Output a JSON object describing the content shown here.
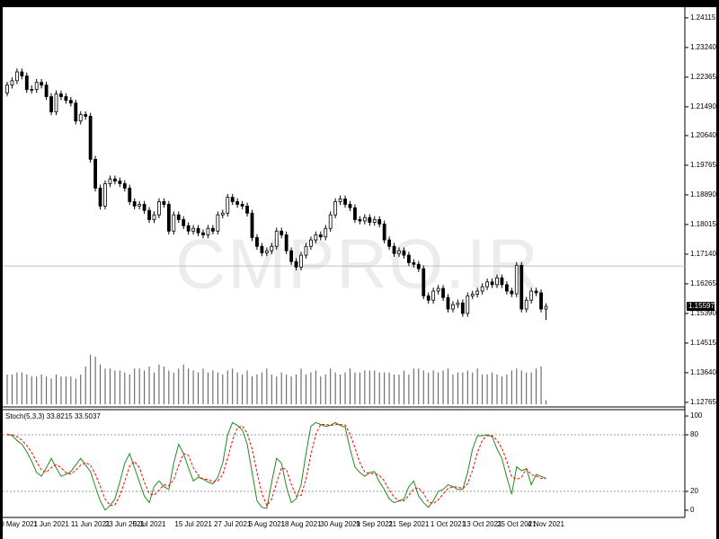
{
  "chart_data": [
    {
      "type": "candlestick",
      "watermark": "CMPRO.IR",
      "ylim": [
        1.1263,
        1.2443
      ],
      "yticks": [
        1.24115,
        {
          "value": 1.2324,
          "label": "1.23240"
        },
        1.22365,
        {
          "value": 1.2149,
          "label": "1.21490"
        },
        {
          "value": 1.2064,
          "label": "1.20640"
        },
        1.19765,
        {
          "value": 1.1889,
          "label": "1.18890"
        },
        1.18015,
        {
          "value": 1.1714,
          "label": "1.17140"
        },
        1.16265,
        {
          "value": 1.1539,
          "label": "1.15390"
        },
        1.14515,
        {
          "value": 1.1364,
          "label": "1.13640"
        },
        1.12765
      ],
      "last_price": 1.15597,
      "hlines": [
        1.1679
      ],
      "up_color": "#ffffff",
      "down_color": "#000000",
      "outline_color": "#000000",
      "candles": {
        "open": [
          1.219,
          1.2213,
          1.2226,
          1.2252,
          1.224,
          1.22,
          1.22,
          1.2221,
          1.2213,
          1.2179,
          1.2134,
          1.2187,
          1.2179,
          1.2168,
          1.216,
          1.2107,
          1.2126,
          1.2121,
          1.1994,
          1.1909,
          1.1856,
          1.1922,
          1.1936,
          1.193,
          1.1922,
          1.1909,
          1.1869,
          1.1856,
          1.1861,
          1.1843,
          1.1816,
          1.183,
          1.1869,
          1.1861,
          1.1782,
          1.183,
          1.1816,
          1.1798,
          1.1782,
          1.179,
          1.1777,
          1.1771,
          1.179,
          1.1782,
          1.183,
          1.1835,
          1.1882,
          1.1869,
          1.1861,
          1.1856,
          1.1835,
          1.1763,
          1.1737,
          1.1718,
          1.1724,
          1.1737,
          1.1782,
          1.1771,
          1.1724,
          1.1692,
          1.1676,
          1.1711,
          1.1737,
          1.1756,
          1.1771,
          1.1765,
          1.179,
          1.183,
          1.1869,
          1.1877,
          1.1861,
          1.1851,
          1.1816,
          1.1812,
          1.1822,
          1.1808,
          1.1816,
          1.1803,
          1.1756,
          1.1737,
          1.1716,
          1.1724,
          1.1711,
          1.1689,
          1.1684,
          1.1671,
          1.1591,
          1.1578,
          1.1605,
          1.1613,
          1.1586,
          1.1552,
          1.1565,
          1.157,
          1.1539,
          1.1591,
          1.1596,
          1.1605,
          1.1618,
          1.1632,
          1.1624,
          1.1644,
          1.1624,
          1.1605,
          1.1597,
          1.1681,
          1.1552,
          1.1578,
          1.1605,
          1.16,
          1.1552
        ],
        "high": [
          1.2223,
          1.2236,
          1.2262,
          1.2262,
          1.225,
          1.2212,
          1.2231,
          1.2231,
          1.2223,
          1.2189,
          1.2197,
          1.2197,
          1.2189,
          1.2178,
          1.217,
          1.2136,
          1.2136,
          1.2131,
          1.2004,
          1.1919,
          1.1932,
          1.1946,
          1.1946,
          1.194,
          1.1932,
          1.1919,
          1.1879,
          1.1871,
          1.1871,
          1.1853,
          1.184,
          1.1879,
          1.1879,
          1.1871,
          1.184,
          1.184,
          1.1826,
          1.1808,
          1.18,
          1.18,
          1.1787,
          1.18,
          1.18,
          1.184,
          1.1845,
          1.1892,
          1.1892,
          1.1879,
          1.1871,
          1.1866,
          1.1845,
          1.1773,
          1.1747,
          1.1734,
          1.1747,
          1.1792,
          1.1792,
          1.1781,
          1.1734,
          1.1702,
          1.1721,
          1.1747,
          1.1766,
          1.1781,
          1.1781,
          1.18,
          1.184,
          1.1879,
          1.1887,
          1.1887,
          1.1871,
          1.1861,
          1.1826,
          1.1832,
          1.1832,
          1.1826,
          1.1826,
          1.1813,
          1.1766,
          1.1747,
          1.1734,
          1.1734,
          1.1721,
          1.1699,
          1.1694,
          1.1681,
          1.1601,
          1.1615,
          1.1623,
          1.1623,
          1.1596,
          1.1575,
          1.158,
          1.158,
          1.1601,
          1.1606,
          1.1615,
          1.1628,
          1.1642,
          1.1642,
          1.1654,
          1.1654,
          1.1634,
          1.1615,
          1.1691,
          1.1691,
          1.1588,
          1.1615,
          1.1615,
          1.161,
          1.1569
        ],
        "low": [
          1.218,
          1.2203,
          1.2216,
          1.223,
          1.219,
          1.2188,
          1.219,
          1.2203,
          1.2169,
          1.2124,
          1.2124,
          1.2169,
          1.2158,
          1.215,
          1.2097,
          1.2097,
          1.2111,
          1.1984,
          1.1899,
          1.1846,
          1.1846,
          1.1912,
          1.192,
          1.1912,
          1.1899,
          1.1859,
          1.1846,
          1.1846,
          1.1833,
          1.1806,
          1.1806,
          1.182,
          1.1851,
          1.1772,
          1.1772,
          1.1806,
          1.1788,
          1.1772,
          1.1772,
          1.1767,
          1.1761,
          1.1761,
          1.1772,
          1.1772,
          1.182,
          1.1825,
          1.1859,
          1.1851,
          1.1846,
          1.1825,
          1.1753,
          1.1727,
          1.1708,
          1.1708,
          1.1714,
          1.1727,
          1.1761,
          1.1714,
          1.1682,
          1.1666,
          1.1666,
          1.1701,
          1.1727,
          1.1746,
          1.1755,
          1.1755,
          1.178,
          1.182,
          1.1859,
          1.1851,
          1.1841,
          1.1806,
          1.1802,
          1.1802,
          1.1798,
          1.1798,
          1.1793,
          1.1746,
          1.1727,
          1.1706,
          1.1706,
          1.1701,
          1.1679,
          1.1674,
          1.1661,
          1.1581,
          1.1568,
          1.1568,
          1.1595,
          1.1576,
          1.1542,
          1.1542,
          1.1555,
          1.1529,
          1.1529,
          1.1581,
          1.1586,
          1.1595,
          1.1608,
          1.1614,
          1.1614,
          1.1614,
          1.1595,
          1.1587,
          1.1587,
          1.1542,
          1.1542,
          1.1568,
          1.159,
          1.1542,
          1.152
        ],
        "close": [
          1.2213,
          1.2226,
          1.2252,
          1.224,
          1.22,
          1.22,
          1.2221,
          1.2213,
          1.2179,
          1.2134,
          1.2187,
          1.2179,
          1.2168,
          1.216,
          1.2107,
          1.2126,
          1.2121,
          1.1994,
          1.1909,
          1.1856,
          1.1922,
          1.1936,
          1.193,
          1.1922,
          1.1909,
          1.1869,
          1.1856,
          1.1861,
          1.1843,
          1.1816,
          1.183,
          1.1869,
          1.1861,
          1.1782,
          1.183,
          1.1816,
          1.1798,
          1.1782,
          1.179,
          1.1777,
          1.1771,
          1.179,
          1.1782,
          1.183,
          1.1835,
          1.1882,
          1.1869,
          1.1861,
          1.1856,
          1.1835,
          1.1763,
          1.1737,
          1.1718,
          1.1724,
          1.1737,
          1.1782,
          1.1771,
          1.1724,
          1.1692,
          1.1676,
          1.1711,
          1.1737,
          1.1756,
          1.1771,
          1.1765,
          1.179,
          1.183,
          1.1869,
          1.1877,
          1.1861,
          1.1851,
          1.1816,
          1.1812,
          1.1822,
          1.1808,
          1.1816,
          1.1803,
          1.1756,
          1.1737,
          1.1716,
          1.1724,
          1.1711,
          1.1689,
          1.1684,
          1.1671,
          1.1591,
          1.1578,
          1.1605,
          1.1613,
          1.1586,
          1.1552,
          1.1565,
          1.157,
          1.1539,
          1.1591,
          1.1596,
          1.1605,
          1.1618,
          1.1632,
          1.1624,
          1.1644,
          1.1624,
          1.1605,
          1.1597,
          1.1681,
          1.1552,
          1.1578,
          1.1605,
          1.16,
          1.1552,
          1.15597
        ]
      },
      "volume_ylim": [
        0,
        400
      ],
      "volume_color": "#555555",
      "volume": [
        30,
        30,
        32,
        32,
        30,
        28,
        28,
        30,
        28,
        26,
        30,
        28,
        28,
        28,
        26,
        30,
        38,
        50,
        48,
        40,
        36,
        36,
        34,
        34,
        32,
        30,
        36,
        36,
        34,
        38,
        32,
        40,
        38,
        34,
        32,
        36,
        40,
        36,
        34,
        32,
        36,
        32,
        34,
        32,
        30,
        34,
        36,
        32,
        30,
        34,
        28,
        30,
        32,
        36,
        30,
        28,
        32,
        30,
        28,
        30,
        36,
        30,
        32,
        34,
        28,
        30,
        36,
        32,
        30,
        32,
        36,
        32,
        32,
        34,
        34,
        34,
        32,
        32,
        32,
        30,
        30,
        34,
        30,
        36,
        36,
        34,
        32,
        34,
        32,
        34,
        36,
        30,
        32,
        32,
        34,
        32,
        36,
        30,
        30,
        32,
        30,
        28,
        30,
        34,
        36,
        34,
        32,
        32,
        36,
        38,
        4
      ]
    },
    {
      "type": "line",
      "title": "Stoch(5,3,3) 33.8215 33.5037",
      "ylim": [
        -6.7,
        106.7
      ],
      "yticks": [
        0,
        20,
        80,
        100
      ],
      "levels": [
        20,
        80
      ],
      "categories": [
        null,
        null,
        "20 May 2021",
        null,
        null,
        null,
        null,
        null,
        null,
        "1 Jun 2021",
        null,
        null,
        null,
        null,
        null,
        null,
        null,
        "11 Jun 2021",
        null,
        null,
        null,
        null,
        null,
        null,
        "23 Jun 2021",
        null,
        null,
        null,
        null,
        "5 Jul 2021",
        null,
        null,
        null,
        null,
        null,
        null,
        null,
        null,
        "15 Jul 2021",
        null,
        null,
        null,
        null,
        null,
        null,
        null,
        "27 Jul 2021",
        null,
        null,
        null,
        null,
        null,
        null,
        "6 Aug 2021",
        null,
        null,
        null,
        null,
        null,
        null,
        "18 Aug 2021",
        null,
        null,
        null,
        null,
        null,
        null,
        null,
        "30 Aug 2021",
        null,
        null,
        null,
        null,
        null,
        null,
        "9 Sep 2021",
        null,
        null,
        null,
        null,
        null,
        null,
        "21 Sep 2021",
        null,
        null,
        null,
        null,
        null,
        null,
        null,
        "1 Oct 2021",
        null,
        null,
        null,
        null,
        null,
        null,
        "13 Oct 2021",
        null,
        null,
        null,
        null,
        null,
        null,
        "25 Oct 2021",
        null,
        null,
        null,
        null,
        null,
        "4 Nov 2021"
      ],
      "series": [
        {
          "name": "Main",
          "color": "#228b22",
          "dash": "solid",
          "values": [
            81,
            79,
            74,
            70,
            62,
            52,
            40,
            36,
            45,
            55,
            45,
            36,
            38,
            41,
            48,
            55,
            48,
            41,
            25,
            10,
            0,
            5,
            12,
            30,
            50,
            60,
            45,
            30,
            15,
            8,
            25,
            31,
            25,
            22,
            50,
            70,
            60,
            45,
            31,
            35,
            33,
            30,
            28,
            35,
            50,
            80,
            93,
            90,
            85,
            70,
            40,
            10,
            3,
            2,
            30,
            55,
            50,
            25,
            8,
            12,
            27,
            60,
            89,
            93,
            91,
            89,
            90,
            93,
            90,
            88,
            65,
            46,
            40,
            36,
            40,
            41,
            30,
            22,
            12,
            8,
            10,
            12,
            25,
            31,
            15,
            8,
            3,
            10,
            20,
            22,
            27,
            25,
            22,
            22,
            40,
            65,
            79,
            79,
            80,
            78,
            65,
            55,
            35,
            17,
            46,
            42,
            44,
            27,
            38,
            36,
            33.8215
          ]
        },
        {
          "name": "Signal",
          "color": "#ff0000",
          "dash": "dashed",
          "values": [
            80,
            80,
            78,
            74.3,
            68.7,
            61.3,
            51.3,
            42.7,
            40.3,
            45.3,
            48.3,
            45.3,
            39.7,
            38.3,
            42.3,
            48,
            50.3,
            48,
            38,
            25.3,
            11.7,
            5,
            5.7,
            15.7,
            30.7,
            46.7,
            51.7,
            45,
            30,
            17.7,
            16,
            21.3,
            27,
            26,
            32.3,
            47.3,
            60,
            58.3,
            45.3,
            37,
            33,
            32.7,
            30.3,
            31,
            37.7,
            55,
            74.3,
            87.7,
            89.3,
            81.7,
            65,
            40,
            17.7,
            5,
            11.7,
            29,
            45,
            43.3,
            27.7,
            15,
            15.7,
            33,
            58.7,
            80.7,
            91,
            91,
            90,
            90.7,
            91,
            90.3,
            81,
            66.3,
            50.3,
            40.7,
            38.7,
            39,
            37,
            31,
            21.3,
            14,
            10,
            10,
            15.7,
            22.7,
            23.7,
            18,
            8.7,
            7,
            11,
            17.3,
            23,
            24.7,
            24.7,
            23,
            28,
            42.3,
            61.3,
            74.3,
            79.3,
            79,
            74.3,
            66,
            51.7,
            35.7,
            32.7,
            35,
            44,
            37.7,
            36.3,
            33.7,
            33.5037
          ]
        }
      ]
    }
  ]
}
